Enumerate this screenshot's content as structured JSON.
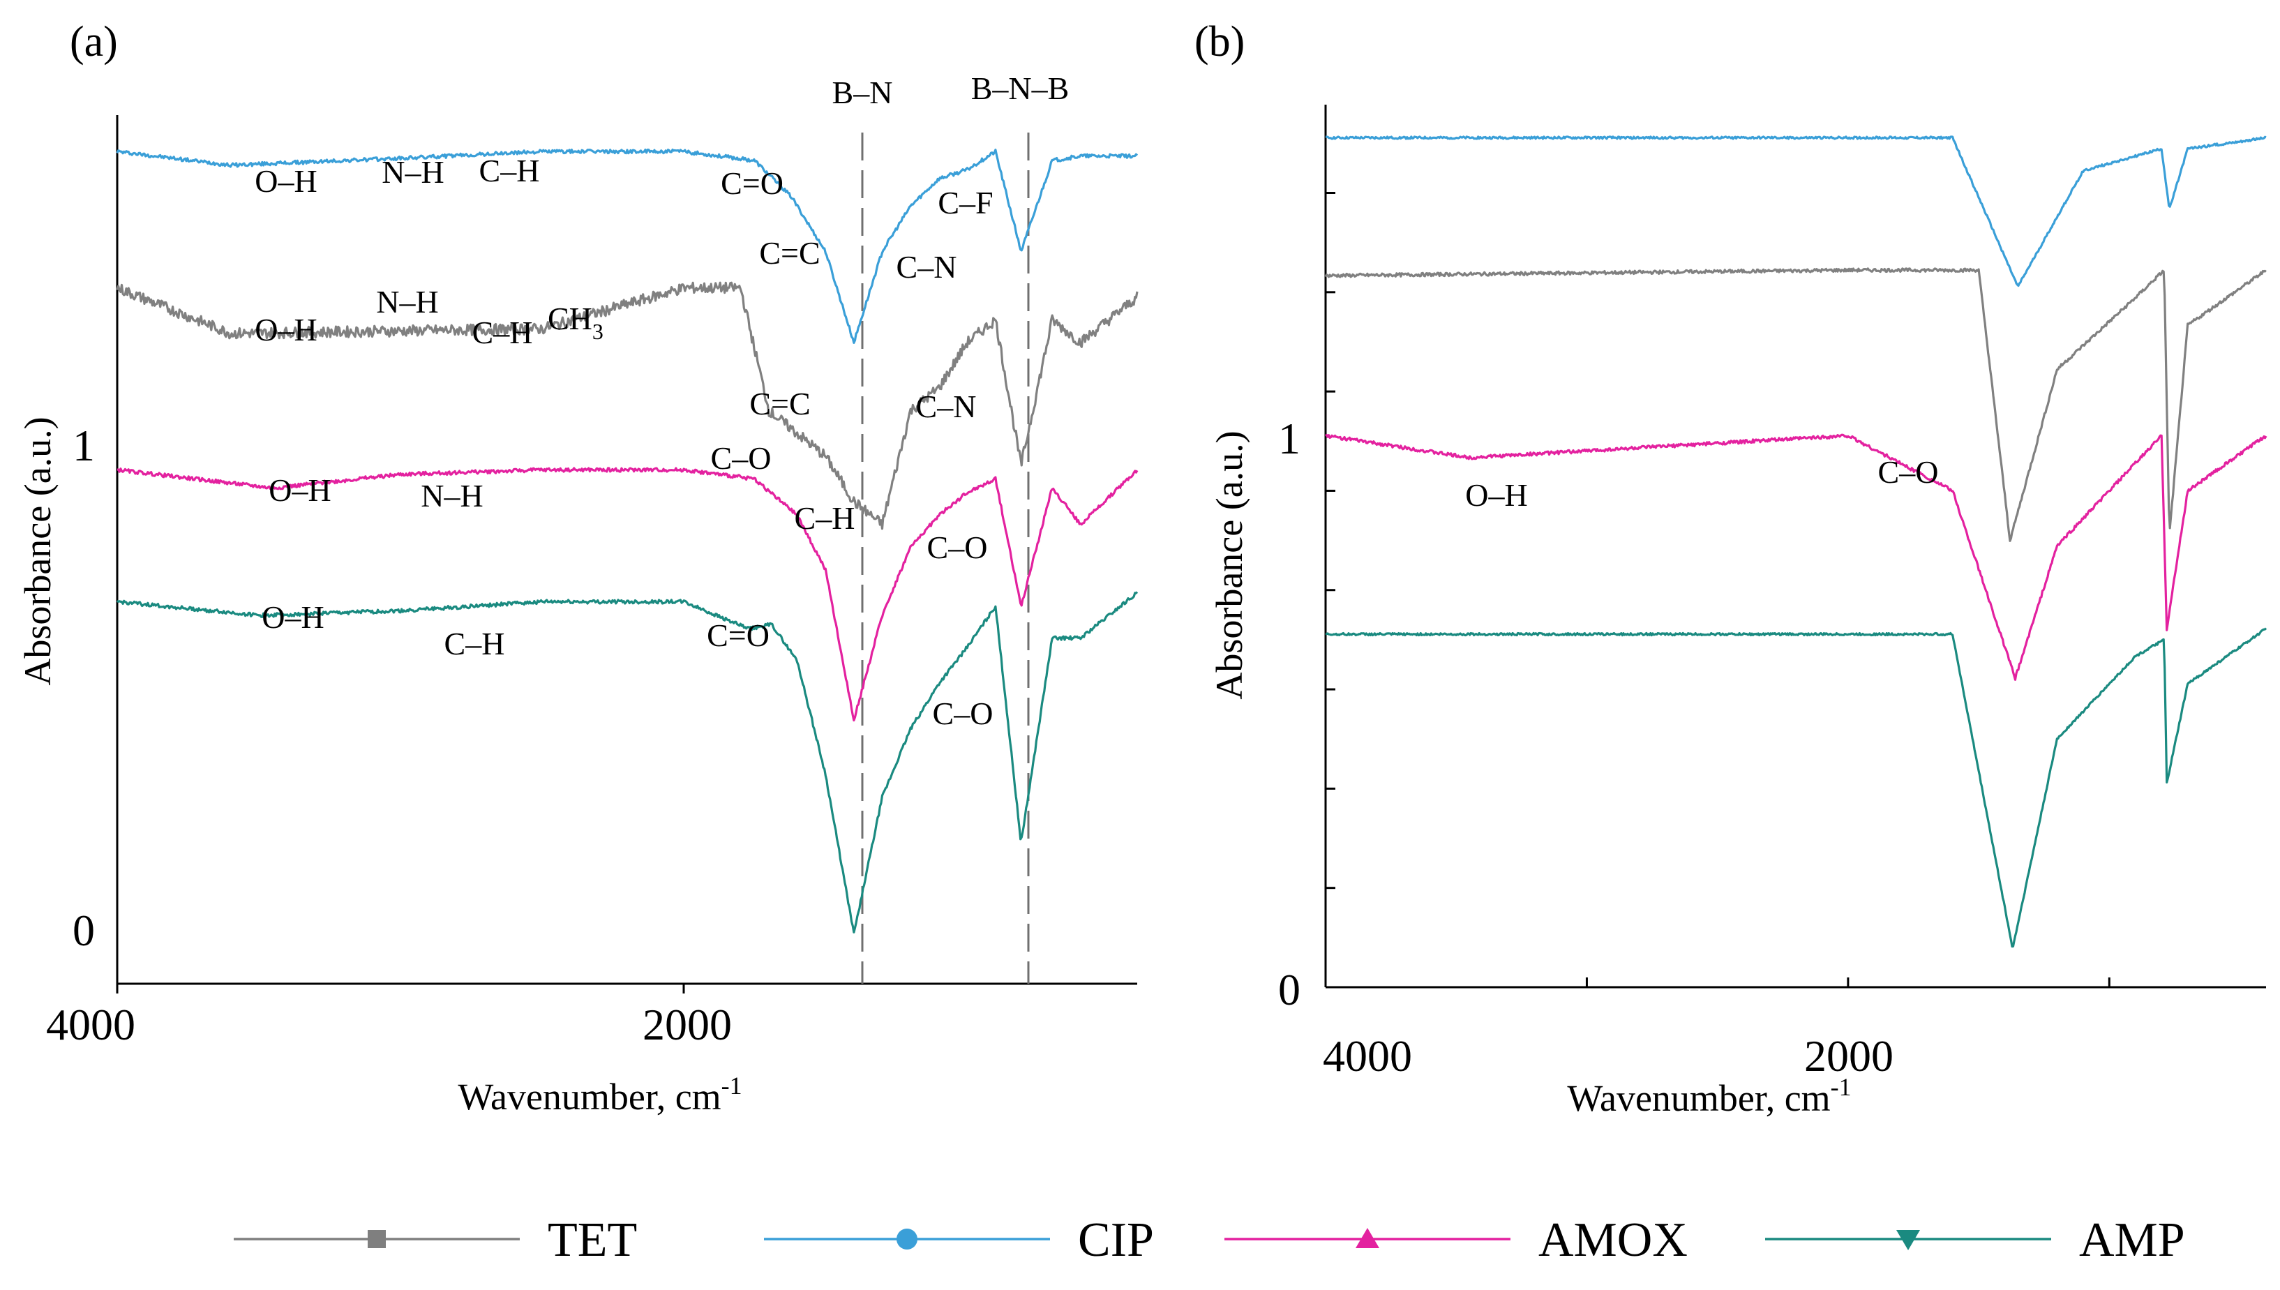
{
  "panels": [
    {
      "id": "a",
      "panel_label": "(a)",
      "ylabel": "Absorbance (a.u.)",
      "xlabel": "Wavenumber, cm",
      "xlabel_sup": "-1",
      "x_tick_labels": [
        "4000",
        "2000"
      ],
      "y_tick_labels": [
        "1",
        "0"
      ],
      "band_labels": [
        "B–N",
        "B–N–B"
      ],
      "annotations": {
        "CIP": [
          "O–H",
          "N–H",
          "C–H",
          "C=O",
          "C–F",
          "C–N"
        ],
        "TET": [
          "O–H",
          "N–H",
          "C–H",
          "CH",
          "C=C",
          "C=C",
          "C–N",
          "C–H"
        ],
        "AMOX": [
          "O–H",
          "N–H",
          "C–O",
          "C–O"
        ],
        "AMP": [
          "O–H",
          "C–H",
          "C=O",
          "C–O"
        ]
      },
      "ch3_subscript": "3"
    },
    {
      "id": "b",
      "panel_label": "(b)",
      "ylabel": "Absorbance (a.u.)",
      "xlabel": "Wavenumber, cm",
      "xlabel_sup": "-1",
      "x_tick_labels": [
        "4000",
        "2000"
      ],
      "y_tick_labels": [
        "1",
        "0"
      ],
      "annotations": {
        "AMOX": [
          "O–H",
          "C–O"
        ]
      }
    }
  ],
  "legend": [
    {
      "name": "TET",
      "color": "#7f7f7f",
      "marker": "square"
    },
    {
      "name": "CIP",
      "color": "#3a9fd8",
      "marker": "circle"
    },
    {
      "name": "AMOX",
      "color": "#e3219f",
      "marker": "triangle-up"
    },
    {
      "name": "AMP",
      "color": "#1a8a80",
      "marker": "triangle-down"
    }
  ],
  "chart_data": [
    {
      "type": "line",
      "panel": "a",
      "x_unit": "cm-1",
      "xlim": [
        4000,
        400
      ],
      "ylim": [
        -0.11,
        1.8
      ],
      "x_ticks": [
        4000,
        2000
      ],
      "y_ticks": [
        0,
        1
      ],
      "reference_lines": [
        1400,
        810
      ],
      "series": [
        {
          "name": "CIP",
          "color": "#3a9fd8",
          "base": 1.72,
          "noise": 0.004,
          "features": [
            [
              3600,
              0.03,
              80
            ],
            [
              3450,
              0.02,
              60
            ],
            [
              3000,
              0.015,
              60
            ],
            [
              2900,
              0.015,
              60
            ],
            [
              1750,
              0.02,
              40
            ],
            [
              1620,
              0.1,
              90
            ],
            [
              1400,
              0.42,
              110
            ],
            [
              1250,
              0.15,
              140
            ],
            [
              1100,
              0.06,
              80
            ],
            [
              1050,
              0.05,
              50
            ],
            [
              810,
              0.22,
              30
            ]
          ],
          "points": [
            [
              4000,
              1.72
            ],
            [
              3600,
              1.69
            ],
            [
              3000,
              1.705
            ],
            [
              2500,
              1.72
            ],
            [
              2000,
              1.72
            ],
            [
              1750,
              1.7
            ],
            [
              1620,
              1.62
            ],
            [
              1500,
              1.5
            ],
            [
              1400,
              1.3
            ],
            [
              1300,
              1.5
            ],
            [
              1200,
              1.6
            ],
            [
              1100,
              1.66
            ],
            [
              1000,
              1.68
            ],
            [
              900,
              1.72
            ],
            [
              810,
              1.5
            ],
            [
              700,
              1.7
            ],
            [
              600,
              1.71
            ],
            [
              400,
              1.71
            ]
          ]
        },
        {
          "name": "TET",
          "color": "#808080",
          "base": 1.42,
          "noise": 0.012,
          "features": [
            [
              3600,
              0.14,
              35
            ],
            [
              3480,
              0.05,
              60
            ],
            [
              3300,
              0.05,
              60
            ],
            [
              3100,
              0.04,
              60
            ],
            [
              2950,
              0.08,
              40
            ],
            [
              2880,
              0.1,
              35
            ],
            [
              2700,
              0.1,
              40
            ],
            [
              2550,
              0.12,
              40
            ],
            [
              1750,
              0.3,
              10
            ],
            [
              1680,
              0.45,
              20
            ],
            [
              1620,
              0.5,
              30
            ],
            [
              1560,
              0.5,
              35
            ],
            [
              1450,
              0.6,
              40
            ],
            [
              1330,
              0.55,
              30
            ],
            [
              1240,
              0.4,
              30
            ],
            [
              1150,
              0.3,
              30
            ],
            [
              1050,
              0.25,
              30
            ],
            [
              820,
              0.4,
              20
            ],
            [
              750,
              0.2,
              30
            ],
            [
              620,
              0.15,
              30
            ],
            [
              500,
              0.1,
              30
            ]
          ],
          "points": [
            [
              4000,
              1.42
            ],
            [
              3600,
              1.32
            ],
            [
              2500,
              1.33
            ],
            [
              2000,
              1.42
            ],
            [
              1800,
              1.42
            ],
            [
              1700,
              1.15
            ],
            [
              1500,
              1.05
            ],
            [
              1400,
              0.95
            ],
            [
              1300,
              0.9
            ],
            [
              1200,
              1.15
            ],
            [
              1100,
              1.2
            ],
            [
              1000,
              1.3
            ],
            [
              900,
              1.35
            ],
            [
              810,
              1.03
            ],
            [
              700,
              1.35
            ],
            [
              600,
              1.3
            ],
            [
              400,
              1.4
            ]
          ]
        },
        {
          "name": "AMOX",
          "color": "#e3219f",
          "base": 1.02,
          "noise": 0.004,
          "features": [
            [
              3450,
              0.04,
              120
            ],
            [
              3100,
              0.03,
              60
            ],
            [
              2950,
              0.02,
              60
            ],
            [
              1780,
              0.02,
              25
            ],
            [
              1600,
              0.1,
              80
            ],
            [
              1400,
              0.58,
              90
            ],
            [
              1250,
              0.2,
              130
            ],
            [
              1100,
              0.05,
              60
            ],
            [
              1000,
              0.04,
              50
            ],
            [
              870,
              0.03,
              20
            ],
            [
              810,
              0.35,
              25
            ],
            [
              600,
              0.15,
              40
            ]
          ],
          "points": [
            [
              4000,
              1.02
            ],
            [
              3450,
              0.98
            ],
            [
              3000,
              1.01
            ],
            [
              2500,
              1.02
            ],
            [
              2000,
              1.02
            ],
            [
              1750,
              1.0
            ],
            [
              1600,
              0.92
            ],
            [
              1500,
              0.8
            ],
            [
              1400,
              0.47
            ],
            [
              1300,
              0.7
            ],
            [
              1200,
              0.85
            ],
            [
              1100,
              0.92
            ],
            [
              1000,
              0.97
            ],
            [
              900,
              1.0
            ],
            [
              810,
              0.72
            ],
            [
              700,
              0.98
            ],
            [
              600,
              0.9
            ],
            [
              400,
              1.02
            ]
          ]
        },
        {
          "name": "AMP",
          "color": "#1a8a80",
          "base": 0.73,
          "noise": 0.004,
          "features": [
            [
              3500,
              0.03,
              100
            ],
            [
              3000,
              0.02,
              60
            ],
            [
              2950,
              0.015,
              50
            ],
            [
              1770,
              0.06,
              15
            ],
            [
              1690,
              0.05,
              15
            ],
            [
              1600,
              0.1,
              90
            ],
            [
              1400,
              0.73,
              100
            ],
            [
              1250,
              0.35,
              150
            ],
            [
              1100,
              0.2,
              80
            ],
            [
              1000,
              0.1,
              80
            ],
            [
              810,
              0.53,
              25
            ],
            [
              600,
              0.1,
              60
            ]
          ],
          "points": [
            [
              4000,
              0.73
            ],
            [
              3500,
              0.7
            ],
            [
              3000,
              0.71
            ],
            [
              2500,
              0.73
            ],
            [
              2000,
              0.73
            ],
            [
              1770,
              0.67
            ],
            [
              1690,
              0.68
            ],
            [
              1600,
              0.6
            ],
            [
              1500,
              0.35
            ],
            [
              1400,
              0.0
            ],
            [
              1300,
              0.3
            ],
            [
              1200,
              0.45
            ],
            [
              1100,
              0.55
            ],
            [
              1000,
              0.63
            ],
            [
              900,
              0.72
            ],
            [
              810,
              0.2
            ],
            [
              700,
              0.65
            ],
            [
              600,
              0.65
            ],
            [
              400,
              0.75
            ]
          ]
        }
      ]
    },
    {
      "type": "line",
      "panel": "b",
      "x_unit": "cm-1",
      "xlim": [
        4000,
        400
      ],
      "ylim": [
        0,
        1.6
      ],
      "x_ticks": [
        4000,
        3000,
        2000,
        1000
      ],
      "x_tick_labels_shown": [
        4000,
        2000
      ],
      "y_ticks": [
        0,
        0.18,
        0.36,
        0.54,
        0.72,
        0.9,
        1.08,
        1.26,
        1.44
      ],
      "y_tick_labels_shown": [
        0,
        1
      ],
      "series": [
        {
          "name": "CIP",
          "color": "#3a9fd8",
          "base": 1.54,
          "noise": 0.002,
          "features": [
            [
              1350,
              0.27,
              90
            ],
            [
              770,
              0.13,
              25
            ]
          ],
          "points": [
            [
              4000,
              1.54
            ],
            [
              2000,
              1.54
            ],
            [
              1600,
              1.54
            ],
            [
              1350,
              1.27
            ],
            [
              1100,
              1.48
            ],
            [
              800,
              1.52
            ],
            [
              770,
              1.41
            ],
            [
              700,
              1.52
            ],
            [
              400,
              1.54
            ]
          ]
        },
        {
          "name": "TET",
          "color": "#808080",
          "base": 1.29,
          "noise": 0.003,
          "features": [
            [
              1380,
              0.83,
              60
            ],
            [
              1200,
              0.15,
              200
            ],
            [
              770,
              0.48,
              30
            ]
          ],
          "points": [
            [
              4000,
              1.29
            ],
            [
              2000,
              1.3
            ],
            [
              1500,
              1.3
            ],
            [
              1380,
              0.81
            ],
            [
              1200,
              1.12
            ],
            [
              900,
              1.25
            ],
            [
              790,
              1.3
            ],
            [
              770,
              0.82
            ],
            [
              700,
              1.2
            ],
            [
              400,
              1.3
            ]
          ]
        },
        {
          "name": "AMOX",
          "color": "#e3219f",
          "base": 1.0,
          "noise": 0.003,
          "features": [
            [
              3450,
              0.04,
              150
            ],
            [
              1800,
              0.03,
              20
            ],
            [
              1600,
              0.1,
              60
            ],
            [
              1360,
              0.54,
              60
            ],
            [
              1150,
              0.2,
              160
            ],
            [
              780,
              0.45,
              25
            ]
          ],
          "points": [
            [
              4000,
              1.0
            ],
            [
              3450,
              0.96
            ],
            [
              2000,
              1.0
            ],
            [
              1600,
              0.9
            ],
            [
              1360,
              0.56
            ],
            [
              1200,
              0.8
            ],
            [
              1000,
              0.9
            ],
            [
              800,
              1.0
            ],
            [
              780,
              0.65
            ],
            [
              700,
              0.9
            ],
            [
              400,
              1.0
            ]
          ]
        },
        {
          "name": "AMP",
          "color": "#1a8a80",
          "base": 0.64,
          "noise": 0.002,
          "features": [
            [
              3500,
              0.01,
              150
            ],
            [
              1370,
              0.61,
              70
            ],
            [
              1150,
              0.25,
              200
            ],
            [
              780,
              0.27,
              25
            ]
          ],
          "points": [
            [
              4000,
              0.64
            ],
            [
              2000,
              0.64
            ],
            [
              1600,
              0.64
            ],
            [
              1370,
              0.07
            ],
            [
              1200,
              0.45
            ],
            [
              900,
              0.6
            ],
            [
              790,
              0.63
            ],
            [
              780,
              0.37
            ],
            [
              700,
              0.55
            ],
            [
              400,
              0.65
            ]
          ]
        }
      ]
    }
  ]
}
